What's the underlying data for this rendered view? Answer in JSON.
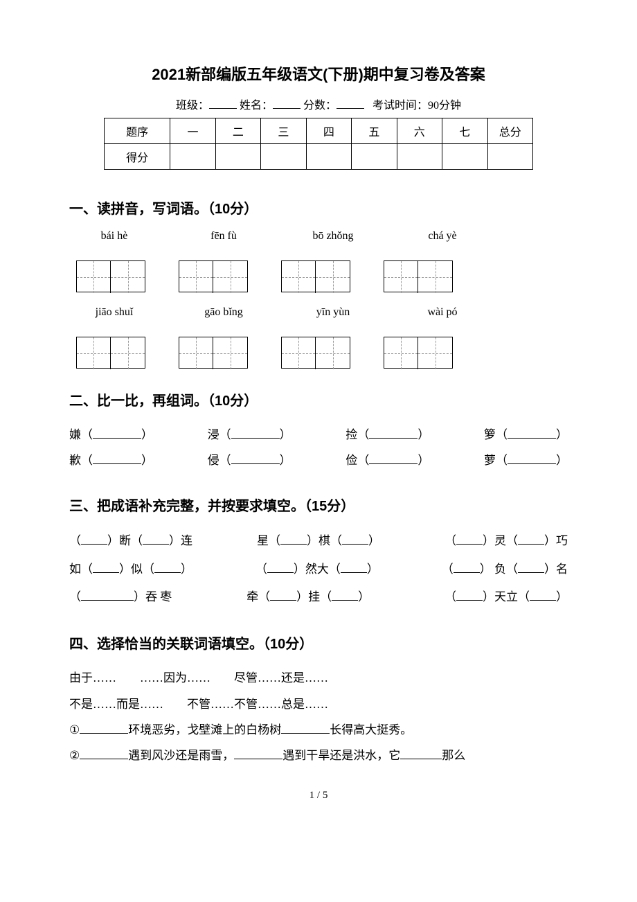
{
  "title": "2021新部编版五年级语文(下册)期中复习卷及答案",
  "header": {
    "class_label": "班级：",
    "name_label": "姓名：",
    "score_label": "分数：",
    "exam_time_label": "考试时间：90分钟"
  },
  "score_table": {
    "row1_label": "题序",
    "row2_label": "得分",
    "columns": [
      "一",
      "二",
      "三",
      "四",
      "五",
      "六",
      "七",
      "总分"
    ]
  },
  "section1": {
    "title": "一、读拼音，写词语。（10分）",
    "row1": [
      "bái hè",
      "fēn fù",
      "bō zhǒng",
      "chá yè"
    ],
    "row2": [
      "jiāo shuǐ",
      "gāo bǐng",
      "yīn yùn",
      "wài pó"
    ]
  },
  "section2": {
    "title": "二、比一比，再组词。（10分）",
    "pairs": [
      [
        "嫌",
        "浸",
        "捡",
        "箩"
      ],
      [
        "歉",
        "侵",
        "俭",
        "萝"
      ]
    ]
  },
  "section3": {
    "title": "三、把成语补充完整，并按要求填空。（15分）",
    "rows": [
      [
        {
          "parts": [
            "（",
            "_s",
            "）断（",
            "_s",
            "）连"
          ]
        },
        {
          "parts": [
            "星（",
            "_s",
            "）棋（",
            "_s",
            "）"
          ]
        },
        {
          "parts": [
            "（",
            "_s",
            "）灵（",
            "_s",
            "）巧"
          ]
        }
      ],
      [
        {
          "parts": [
            "如（",
            "_s",
            "）似（",
            "_s",
            "）"
          ]
        },
        {
          "parts": [
            "（",
            "_s",
            "）然大（",
            "_s",
            "）"
          ]
        },
        {
          "parts": [
            "（",
            "_s",
            "） 负（",
            "_s",
            "）名"
          ]
        }
      ],
      [
        {
          "parts": [
            "（",
            "_l",
            "）吞 枣"
          ]
        },
        {
          "parts": [
            "牵（",
            "_s",
            "）挂（",
            "_s",
            "）"
          ]
        },
        {
          "parts": [
            "（",
            "_s",
            "）天立（",
            "_s",
            "）"
          ]
        }
      ]
    ]
  },
  "section4": {
    "title": "四、选择恰当的关联词语填空。（10分）",
    "options_line1": "由于……　　……因为……　　尽管……还是……",
    "options_line2": "不是……而是……　　不管……不管……总是……",
    "q1_prefix": "①",
    "q1_a": "环境恶劣，戈壁滩上的白杨树",
    "q1_b": "长得高大挺秀。",
    "q2_prefix": "②",
    "q2_a": "遇到风沙还是雨雪，",
    "q2_b": "遇到干旱还是洪水，它",
    "q2_c": "那么"
  },
  "page_number": "1 / 5"
}
